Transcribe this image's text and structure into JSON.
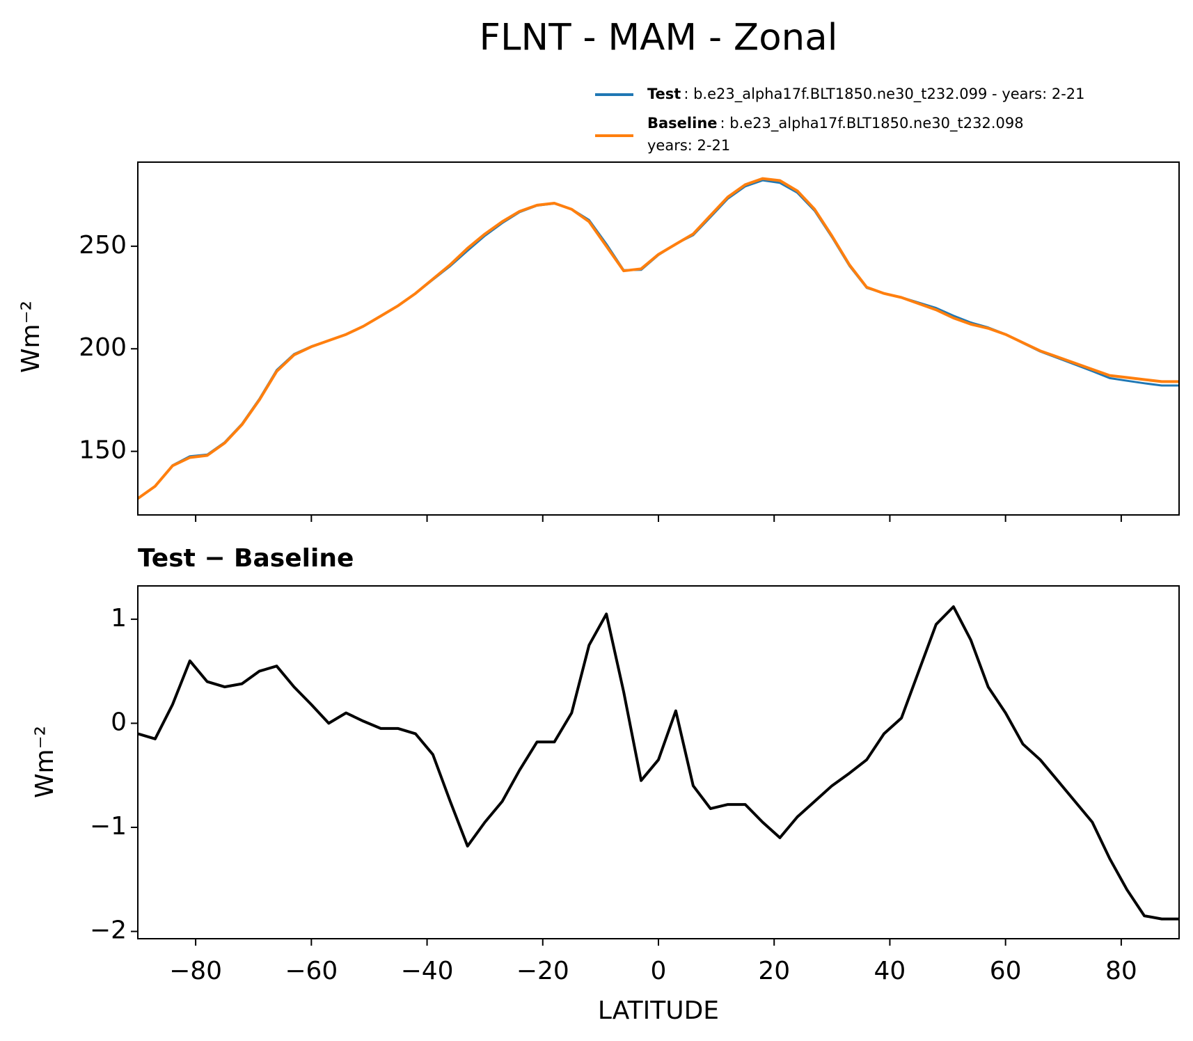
{
  "chart_data": [
    {
      "type": "line",
      "title": "FLNT - MAM - Zonal",
      "ylabel": "Wm⁻²",
      "x": [
        -90,
        -87,
        -84,
        -81,
        -78,
        -75,
        -72,
        -69,
        -66,
        -63,
        -60,
        -57,
        -54,
        -51,
        -48,
        -45,
        -42,
        -39,
        -36,
        -33,
        -30,
        -27,
        -24,
        -21,
        -18,
        -15,
        -12,
        -9,
        -6,
        -3,
        0,
        3,
        6,
        9,
        12,
        15,
        18,
        21,
        24,
        27,
        30,
        33,
        36,
        39,
        42,
        45,
        48,
        51,
        54,
        57,
        60,
        63,
        66,
        69,
        72,
        75,
        78,
        81,
        84,
        87,
        90
      ],
      "series": [
        {
          "name": "Test",
          "description": [
            ": b.e23_alpha17f.BLT1850.ne30_t232.099 - years: 2-21"
          ],
          "color": "#1f77b4",
          "values": [
            126.9,
            132.9,
            143.2,
            147.6,
            148.4,
            154.4,
            163.4,
            175.5,
            189.6,
            197.4,
            201.2,
            204,
            207.1,
            211,
            215.9,
            220.9,
            226.9,
            233.7,
            240.3,
            247.8,
            255.1,
            261.3,
            266.6,
            269.8,
            270.8,
            268.1,
            262.8,
            251.1,
            238.3,
            238.5,
            245.7,
            251.1,
            255.4,
            264.2,
            273.2,
            279.2,
            282.1,
            280.9,
            276.1,
            267.3,
            254.4,
            240.5,
            229.7,
            227.0,
            225.1,
            222.5,
            219.9,
            216.1,
            212.8,
            210.4,
            207.1,
            202.8,
            198.7,
            195.5,
            192.3,
            189.1,
            185.7,
            184.4,
            183.2,
            182.1,
            182.1
          ]
        },
        {
          "name": "Baseline",
          "description": [
            ": b.e23_alpha17f.BLT1850.ne30_t232.098",
            "years: 2-21"
          ],
          "color": "#ff7f0e",
          "values": [
            127,
            133,
            143,
            147,
            148,
            154,
            163,
            175,
            189,
            197,
            201,
            204,
            207,
            211,
            216,
            221,
            227,
            234,
            241,
            249,
            256,
            262,
            267,
            270,
            271,
            268,
            262,
            250,
            238,
            239,
            246,
            251,
            256,
            265,
            274,
            280,
            283,
            282,
            277,
            268,
            255,
            241,
            230,
            227,
            225,
            222,
            219,
            215,
            212,
            210,
            207,
            203,
            199,
            196,
            193,
            190,
            187,
            186,
            185,
            184,
            184
          ]
        }
      ],
      "xlim": [
        -90,
        90
      ],
      "ylim": [
        119,
        291
      ],
      "yticks": [
        150,
        200,
        250
      ]
    },
    {
      "type": "line",
      "title": "Test − Baseline",
      "xlabel": "LATITUDE",
      "ylabel": "Wm⁻²",
      "x": [
        -90,
        -87,
        -84,
        -81,
        -78,
        -75,
        -72,
        -69,
        -66,
        -63,
        -60,
        -57,
        -54,
        -51,
        -48,
        -45,
        -42,
        -39,
        -36,
        -33,
        -30,
        -27,
        -24,
        -21,
        -18,
        -15,
        -12,
        -9,
        -6,
        -3,
        0,
        3,
        6,
        9,
        12,
        15,
        18,
        21,
        24,
        27,
        30,
        33,
        36,
        39,
        42,
        45,
        48,
        51,
        54,
        57,
        60,
        63,
        66,
        69,
        72,
        75,
        78,
        81,
        84,
        87,
        90
      ],
      "series": [
        {
          "color": "#000000",
          "values": [
            -0.1,
            -0.15,
            0.18,
            0.6,
            0.4,
            0.35,
            0.38,
            0.5,
            0.55,
            0.35,
            0.18,
            0.0,
            0.1,
            0.02,
            -0.05,
            -0.05,
            -0.1,
            -0.3,
            -0.75,
            -1.18,
            -0.95,
            -0.75,
            -0.45,
            -0.18,
            -0.18,
            0.1,
            0.75,
            1.05,
            0.3,
            -0.55,
            -0.35,
            0.12,
            -0.6,
            -0.82,
            -0.78,
            -0.78,
            -0.95,
            -1.1,
            -0.9,
            -0.75,
            -0.6,
            -0.48,
            -0.35,
            -0.1,
            0.05,
            0.5,
            0.95,
            1.12,
            0.8,
            0.35,
            0.1,
            -0.2,
            -0.35,
            -0.55,
            -0.75,
            -0.95,
            -1.3,
            -1.6,
            -1.85,
            -1.88,
            -1.88
          ]
        }
      ],
      "xlim": [
        -90,
        90
      ],
      "ylim": [
        -2.07,
        1.32
      ],
      "xticks": [
        {
          "value": -80,
          "label": "−80"
        },
        {
          "value": -60,
          "label": "−60"
        },
        {
          "value": -40,
          "label": "−40"
        },
        {
          "value": -20,
          "label": "−20"
        },
        0,
        20,
        40,
        60,
        80
      ],
      "yticks": [
        {
          "value": -2,
          "label": "−2"
        },
        {
          "value": -1,
          "label": "−1"
        },
        0,
        1
      ]
    }
  ]
}
